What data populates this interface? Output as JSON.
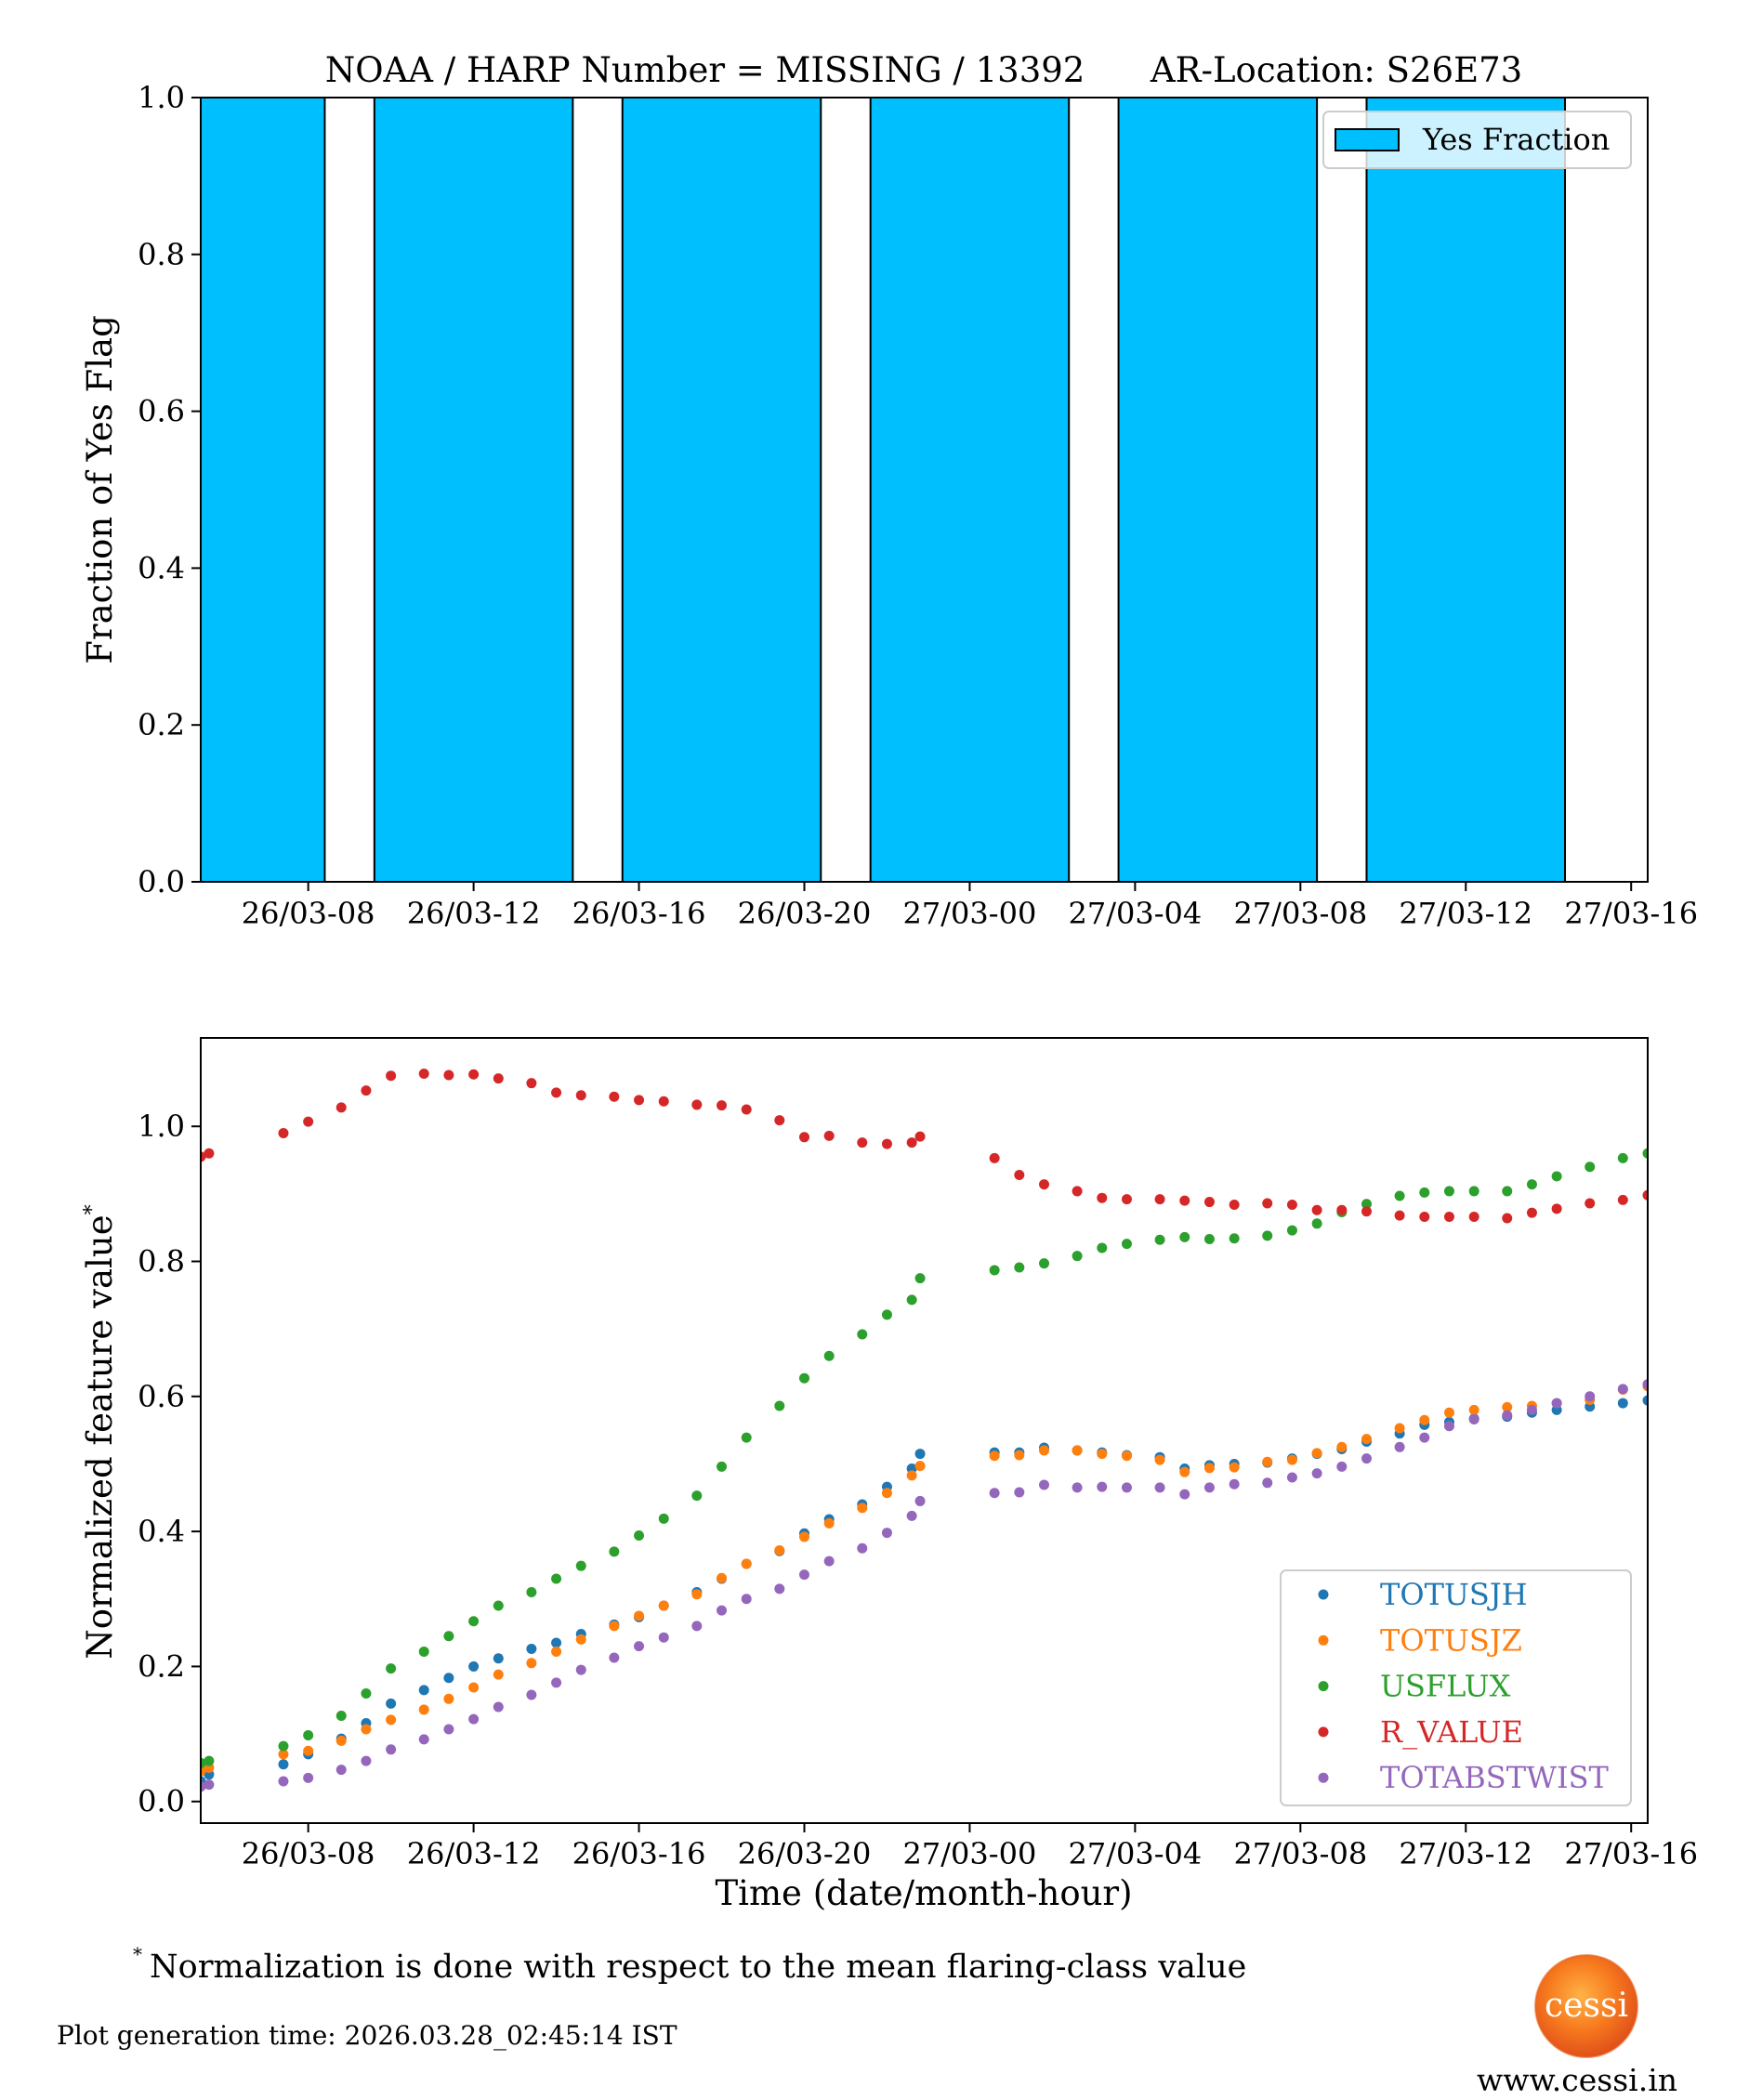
{
  "chart_data": [
    {
      "type": "bar",
      "title": "NOAA / HARP Number = MISSING / 13392      AR-Location: S26E73",
      "xlabel": "",
      "ylabel": "Fraction of Yes Flag",
      "x_unit": "hours since 26/03-00",
      "xlim": [
        5.4,
        40.4
      ],
      "ylim": [
        0.0,
        1.0
      ],
      "yticks": [
        "0.0",
        "0.2",
        "0.4",
        "0.6",
        "0.8",
        "1.0"
      ],
      "ytick_values": [
        0.0,
        0.2,
        0.4,
        0.6,
        0.8,
        1.0
      ],
      "xticks": [
        "26/03-08",
        "26/03-12",
        "26/03-16",
        "26/03-20",
        "27/03-00",
        "27/03-04",
        "27/03-08",
        "27/03-12",
        "27/03-16"
      ],
      "xtick_values": [
        8,
        12,
        16,
        20,
        24,
        28,
        32,
        36,
        40
      ],
      "bar_width_hours": 4.8,
      "bar_color": "#00BFFF",
      "bar_edge_color": "#000000",
      "legend": {
        "label": "Yes Fraction",
        "placement": "top-right"
      },
      "bars": [
        {
          "center": 6,
          "value": 1.0
        },
        {
          "center": 12,
          "value": 1.0
        },
        {
          "center": 18,
          "value": 1.0
        },
        {
          "center": 24,
          "value": 1.0
        },
        {
          "center": 30,
          "value": 1.0
        },
        {
          "center": 36,
          "value": 1.0
        }
      ]
    },
    {
      "type": "scatter",
      "title": "",
      "xlabel": "Time (date/month-hour)",
      "ylabel": "Normalized feature value",
      "ylabel_superscript": "*",
      "x_unit": "hours since 26/03-00",
      "xlim": [
        5.4,
        40.4
      ],
      "ylim": [
        -0.032,
        1.131
      ],
      "yticks": [
        "0.0",
        "0.2",
        "0.4",
        "0.6",
        "0.8",
        "1.0"
      ],
      "ytick_values": [
        0.0,
        0.2,
        0.4,
        0.6,
        0.8,
        1.0
      ],
      "xticks": [
        "26/03-08",
        "26/03-12",
        "26/03-16",
        "26/03-20",
        "27/03-00",
        "27/03-04",
        "27/03-08",
        "27/03-12",
        "27/03-16"
      ],
      "xtick_values": [
        8,
        12,
        16,
        20,
        24,
        28,
        32,
        36,
        40
      ],
      "legend_placement": "lower-right",
      "x": [
        5.4,
        5.6,
        7.4,
        8.0,
        8.8,
        9.4,
        10.0,
        10.8,
        11.4,
        12.0,
        12.6,
        13.4,
        14.0,
        14.6,
        15.4,
        16.0,
        16.6,
        17.4,
        18.0,
        18.6,
        19.4,
        20.0,
        20.6,
        21.4,
        22.0,
        22.6,
        22.8,
        24.6,
        25.2,
        25.8,
        26.6,
        27.2,
        27.8,
        28.6,
        29.2,
        29.8,
        30.4,
        31.2,
        31.8,
        32.4,
        33.0,
        33.6,
        34.4,
        35.0,
        35.6,
        36.2,
        37.0,
        37.6,
        38.2,
        39.0,
        39.8,
        40.4
      ],
      "series": [
        {
          "name": "TOTUSJH",
          "color": "#1F77B4",
          "values": [
            0.03,
            0.04,
            0.055,
            0.07,
            0.093,
            0.116,
            0.145,
            0.165,
            0.183,
            0.2,
            0.212,
            0.226,
            0.235,
            0.248,
            0.262,
            0.273,
            0.29,
            0.31,
            0.33,
            0.352,
            0.371,
            0.397,
            0.418,
            0.44,
            0.466,
            0.493,
            0.515,
            0.517,
            0.517,
            0.524,
            0.52,
            0.517,
            0.513,
            0.51,
            0.493,
            0.498,
            0.5,
            0.502,
            0.508,
            0.515,
            0.522,
            0.533,
            0.545,
            0.558,
            0.562,
            0.567,
            0.57,
            0.576,
            0.58,
            0.585,
            0.59,
            0.594
          ]
        },
        {
          "name": "TOTUSJZ",
          "color": "#FF7F0E",
          "values": [
            0.045,
            0.05,
            0.07,
            0.075,
            0.09,
            0.107,
            0.121,
            0.136,
            0.152,
            0.169,
            0.188,
            0.205,
            0.222,
            0.24,
            0.26,
            0.275,
            0.29,
            0.307,
            0.331,
            0.352,
            0.372,
            0.392,
            0.412,
            0.435,
            0.457,
            0.483,
            0.497,
            0.512,
            0.513,
            0.52,
            0.52,
            0.515,
            0.512,
            0.506,
            0.488,
            0.494,
            0.495,
            0.503,
            0.506,
            0.516,
            0.525,
            0.537,
            0.553,
            0.565,
            0.576,
            0.58,
            0.584,
            0.586,
            0.59,
            0.595,
            0.61,
            0.615
          ]
        },
        {
          "name": "USFLUX",
          "color": "#2CA02C",
          "values": [
            0.057,
            0.06,
            0.082,
            0.098,
            0.127,
            0.16,
            0.197,
            0.222,
            0.245,
            0.267,
            0.29,
            0.31,
            0.33,
            0.349,
            0.37,
            0.394,
            0.419,
            0.453,
            0.496,
            0.539,
            0.586,
            0.627,
            0.66,
            0.692,
            0.721,
            0.743,
            0.775,
            0.787,
            0.791,
            0.797,
            0.808,
            0.82,
            0.826,
            0.832,
            0.836,
            0.833,
            0.834,
            0.838,
            0.846,
            0.856,
            0.873,
            0.885,
            0.897,
            0.902,
            0.904,
            0.904,
            0.904,
            0.914,
            0.926,
            0.94,
            0.953,
            0.96
          ]
        },
        {
          "name": "R_VALUE",
          "color": "#D62728",
          "values": [
            0.955,
            0.96,
            0.99,
            1.007,
            1.028,
            1.053,
            1.075,
            1.078,
            1.076,
            1.077,
            1.071,
            1.064,
            1.05,
            1.046,
            1.044,
            1.039,
            1.037,
            1.032,
            1.031,
            1.025,
            1.009,
            0.984,
            0.986,
            0.976,
            0.974,
            0.976,
            0.985,
            0.953,
            0.928,
            0.914,
            0.904,
            0.894,
            0.892,
            0.892,
            0.89,
            0.888,
            0.884,
            0.886,
            0.884,
            0.876,
            0.876,
            0.874,
            0.868,
            0.866,
            0.866,
            0.866,
            0.864,
            0.872,
            0.878,
            0.886,
            0.891,
            0.898
          ]
        },
        {
          "name": "TOTABSTWIST",
          "color": "#9467BD",
          "values": [
            0.022,
            0.025,
            0.03,
            0.035,
            0.047,
            0.06,
            0.077,
            0.092,
            0.107,
            0.122,
            0.14,
            0.158,
            0.176,
            0.195,
            0.213,
            0.23,
            0.243,
            0.26,
            0.283,
            0.3,
            0.315,
            0.336,
            0.356,
            0.375,
            0.398,
            0.423,
            0.445,
            0.457,
            0.458,
            0.469,
            0.465,
            0.466,
            0.465,
            0.465,
            0.455,
            0.465,
            0.47,
            0.472,
            0.48,
            0.486,
            0.496,
            0.508,
            0.525,
            0.539,
            0.556,
            0.566,
            0.572,
            0.58,
            0.59,
            0.6,
            0.611,
            0.618
          ]
        }
      ]
    }
  ],
  "footer": {
    "footnote_marker": "*",
    "footnote": "Normalization is done with respect to the mean flaring-class value",
    "generation_time": "Plot generation time: 2026.03.28_02:45:14 IST",
    "logo_text": "cessi",
    "website": "www.cessi.in"
  }
}
